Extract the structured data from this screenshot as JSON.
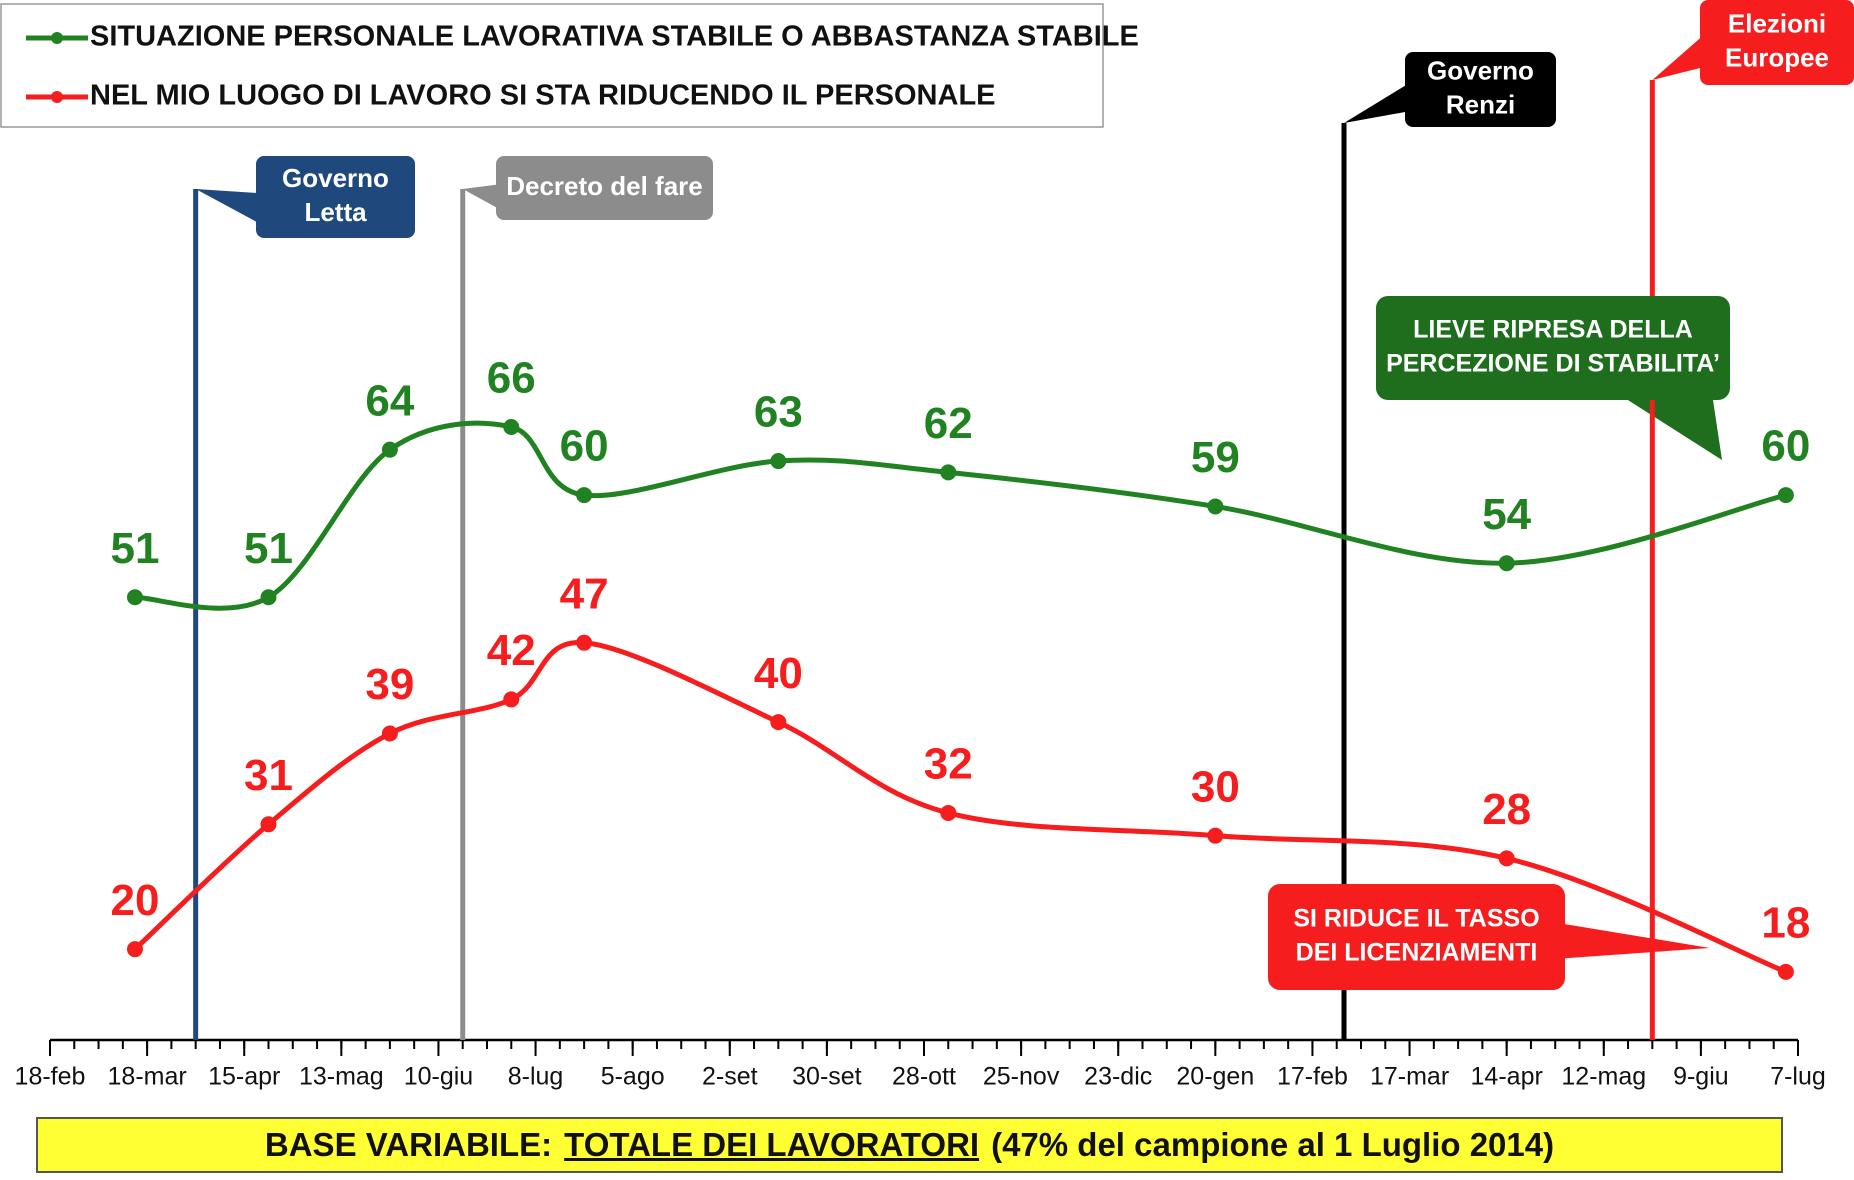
{
  "chart_data": {
    "type": "line",
    "xlim": [
      0,
      72
    ],
    "xticks": [
      {
        "value": 0,
        "label": "18-feb"
      },
      {
        "value": 4,
        "label": "18-mar"
      },
      {
        "value": 8,
        "label": "15-apr"
      },
      {
        "value": 12,
        "label": "13-mag"
      },
      {
        "value": 16,
        "label": "10-giu"
      },
      {
        "value": 20,
        "label": "8-lug"
      },
      {
        "value": 24,
        "label": "5-ago"
      },
      {
        "value": 28,
        "label": "2-set"
      },
      {
        "value": 32,
        "label": "30-set"
      },
      {
        "value": 36,
        "label": "28-ott"
      },
      {
        "value": 40,
        "label": "25-nov"
      },
      {
        "value": 44,
        "label": "23-dic"
      },
      {
        "value": 48,
        "label": "20-gen"
      },
      {
        "value": 52,
        "label": "17-feb"
      },
      {
        "value": 56,
        "label": "17-mar"
      },
      {
        "value": 60,
        "label": "14-apr"
      },
      {
        "value": 64,
        "label": "12-mag"
      },
      {
        "value": 68,
        "label": "9-giu"
      },
      {
        "value": 72,
        "label": "7-lug"
      }
    ],
    "ylim": [
      12,
      100
    ],
    "x": [
      3.5,
      9,
      14,
      19,
      22,
      30,
      37,
      48,
      60,
      71.5
    ],
    "series": [
      {
        "name": "SITUAZIONE PERSONALE LAVORATIVA STABILE O ABBASTANZA STABILE",
        "color": "#218221",
        "values": [
          51,
          51,
          64,
          66,
          60,
          63,
          62,
          59,
          54,
          60
        ]
      },
      {
        "name": "NEL MIO LUOGO DI LAVORO SI STA RIDUCENDO IL PERSONALE",
        "color": "#f51d1d",
        "values": [
          20,
          31,
          39,
          42,
          47,
          40,
          32,
          30,
          28,
          18
        ]
      }
    ],
    "events": [
      {
        "x": 6,
        "lines": [
          "Governo",
          "Letta"
        ],
        "color": "#1f497d"
      },
      {
        "x": 17,
        "lines": [
          "Decreto del fare"
        ],
        "color": "#8c8c8c"
      },
      {
        "x": 53.3,
        "lines": [
          "Governo",
          "Renzi"
        ],
        "color": "#000000"
      },
      {
        "x": 66,
        "lines": [
          "Elezioni",
          "Europee"
        ],
        "color": "#f51d1d"
      }
    ],
    "callouts": [
      {
        "lines": [
          "LIEVE RIPRESA DELLA",
          "PERCEZIONE DI STABILITA’"
        ],
        "color": "#1e6e1e"
      },
      {
        "lines": [
          "SI RIDUCE IL TASSO",
          "DEI LICENZIAMENTI"
        ],
        "color": "#f51d1d"
      }
    ],
    "footer": {
      "label": "BASE VARIABILE:",
      "highlight": "TOTALE DEI LAVORATORI",
      "note": "(47% del campione al 1 Luglio 2014)"
    }
  }
}
